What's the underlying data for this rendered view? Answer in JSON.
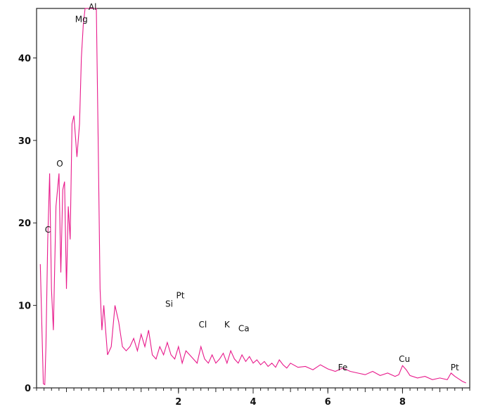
{
  "chart_data": {
    "type": "line",
    "title": "",
    "xlabel": "",
    "ylabel": "",
    "xlim": [
      -1.8,
      9.8
    ],
    "ylim": [
      0,
      46
    ],
    "grid": false,
    "line_color": "#e8198b",
    "x_ticks": [
      {
        "value": 2,
        "label": "2"
      },
      {
        "value": 4,
        "label": "4"
      },
      {
        "value": 6,
        "label": "6"
      },
      {
        "value": 8,
        "label": "8"
      }
    ],
    "y_ticks": [
      {
        "value": 0,
        "label": "0"
      },
      {
        "value": 10,
        "label": "10"
      },
      {
        "value": 20,
        "label": "20"
      },
      {
        "value": 30,
        "label": "30"
      },
      {
        "value": 40,
        "label": "40"
      }
    ],
    "series": [
      {
        "x": [
          -1.7,
          -1.62,
          -1.58,
          -1.55,
          -1.5,
          -1.45,
          -1.4,
          -1.35,
          -1.28,
          -1.2,
          -1.15,
          -1.1,
          -1.05,
          -1.0,
          -0.95,
          -0.9,
          -0.85,
          -0.8,
          -0.72,
          -0.65,
          -0.6,
          -0.55,
          -0.5,
          -0.4,
          -0.3,
          -0.2,
          -0.15,
          -0.1,
          -0.05,
          0.0,
          0.05,
          0.1,
          0.2,
          0.3,
          0.4,
          0.5,
          0.6,
          0.7,
          0.8,
          0.9,
          1.0,
          1.1,
          1.2,
          1.3,
          1.4,
          1.5,
          1.6,
          1.7,
          1.8,
          1.9,
          2.0,
          2.1,
          2.2,
          2.3,
          2.4,
          2.5,
          2.6,
          2.7,
          2.8,
          2.9,
          3.0,
          3.1,
          3.2,
          3.3,
          3.4,
          3.5,
          3.6,
          3.7,
          3.8,
          3.9,
          4.0,
          4.1,
          4.2,
          4.3,
          4.4,
          4.5,
          4.6,
          4.7,
          4.8,
          4.9,
          5.0,
          5.2,
          5.4,
          5.6,
          5.8,
          6.0,
          6.2,
          6.4,
          6.6,
          6.8,
          7.0,
          7.2,
          7.4,
          7.6,
          7.8,
          7.9,
          8.0,
          8.1,
          8.2,
          8.4,
          8.6,
          8.8,
          9.0,
          9.2,
          9.3,
          9.4,
          9.5,
          9.6,
          9.7
        ],
        "y": [
          15.0,
          0.5,
          0.4,
          5.0,
          18.0,
          26.0,
          12.0,
          7.0,
          22.0,
          26.0,
          14.0,
          24.0,
          25.0,
          12.0,
          22.0,
          18.0,
          32.0,
          33.0,
          28.0,
          32.0,
          40.0,
          44.0,
          46.0,
          46.0,
          46.0,
          46.0,
          30.0,
          12.0,
          7.0,
          10.0,
          7.0,
          4.0,
          5.0,
          10.0,
          8.0,
          5.0,
          4.5,
          5.0,
          6.0,
          4.5,
          6.5,
          5.0,
          7.0,
          4.0,
          3.5,
          5.0,
          4.0,
          5.5,
          4.0,
          3.5,
          5.0,
          3.0,
          4.5,
          4.0,
          3.5,
          3.0,
          5.0,
          3.5,
          3.0,
          4.0,
          3.0,
          3.5,
          4.2,
          3.0,
          4.5,
          3.5,
          3.0,
          4.0,
          3.2,
          3.8,
          3.0,
          3.4,
          2.8,
          3.2,
          2.6,
          3.0,
          2.5,
          3.4,
          2.8,
          2.4,
          3.0,
          2.5,
          2.6,
          2.2,
          2.8,
          2.3,
          2.0,
          2.4,
          2.0,
          1.8,
          1.6,
          2.0,
          1.5,
          1.8,
          1.4,
          1.6,
          2.7,
          2.2,
          1.5,
          1.2,
          1.4,
          1.0,
          1.2,
          1.0,
          1.8,
          1.4,
          1.1,
          0.8,
          0.6
        ]
      }
    ],
    "annotations": [
      {
        "text": "C",
        "x": -1.5,
        "y": 18.5
      },
      {
        "text": "O",
        "x": -1.18,
        "y": 26.5
      },
      {
        "text": "Mg",
        "x": -0.6,
        "y": 44.0
      },
      {
        "text": "Al",
        "x": -0.3,
        "y": 45.5
      },
      {
        "text": "Si",
        "x": 1.75,
        "y": 9.5
      },
      {
        "text": "Pt",
        "x": 2.05,
        "y": 10.5
      },
      {
        "text": "Cl",
        "x": 2.65,
        "y": 7.0
      },
      {
        "text": "K",
        "x": 3.3,
        "y": 7.0
      },
      {
        "text": "Ca",
        "x": 3.75,
        "y": 6.5
      },
      {
        "text": "Fe",
        "x": 6.4,
        "y": 1.8
      },
      {
        "text": "Cu",
        "x": 8.05,
        "y": 2.8
      },
      {
        "text": "Pt",
        "x": 9.4,
        "y": 1.8
      }
    ]
  }
}
